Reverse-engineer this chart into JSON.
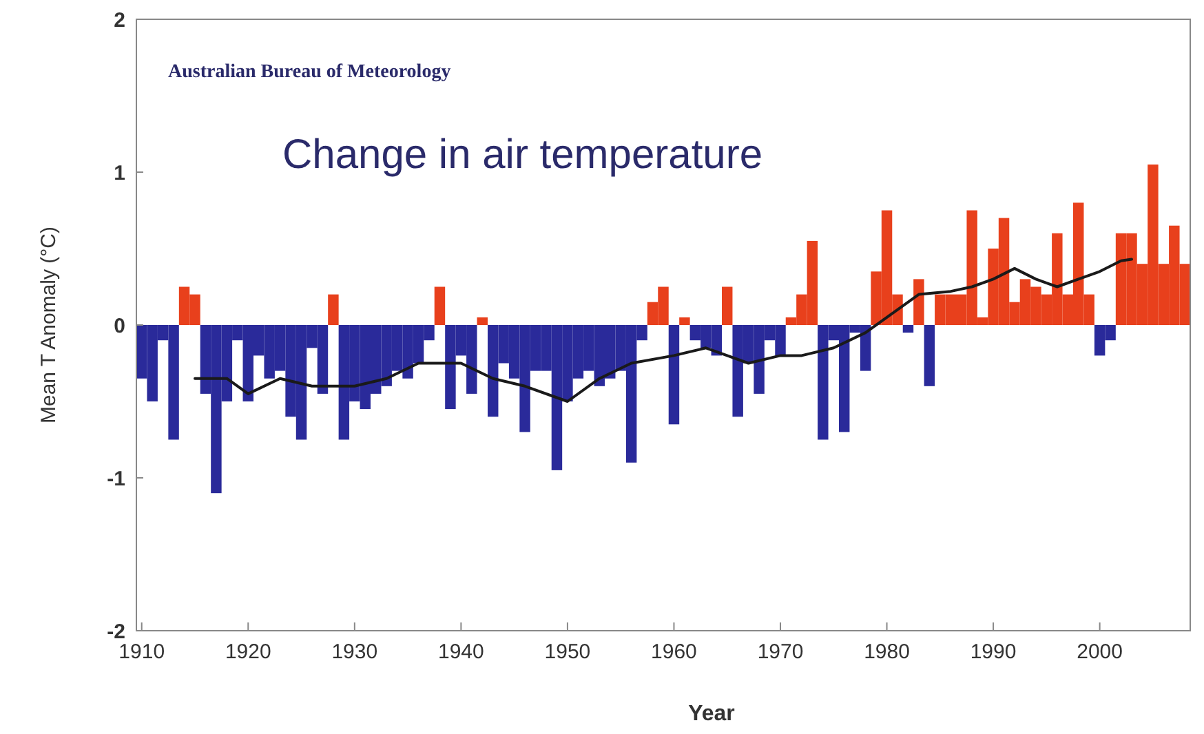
{
  "chart_data": {
    "type": "bar",
    "title": "Change in air temperature",
    "xlabel": "Year",
    "ylabel": "Mean T Anomaly (°C)",
    "annotations": [
      "Australian Bureau of Meteorology"
    ],
    "xlim": [
      1909.5,
      2008.5
    ],
    "xticks": [
      1910,
      1920,
      1930,
      1940,
      1950,
      1960,
      1970,
      1980,
      1990,
      2000
    ],
    "ylim": [
      -2,
      2
    ],
    "yticks": [
      -2,
      -1,
      0,
      1,
      2
    ],
    "grid": false,
    "series": [
      {
        "x": [
          1910,
          1911,
          1912,
          1913,
          1914,
          1915,
          1916,
          1917,
          1918,
          1919,
          1920,
          1921,
          1922,
          1923,
          1924,
          1925,
          1926,
          1927,
          1928,
          1929,
          1930,
          1931,
          1932,
          1933,
          1934,
          1935,
          1936,
          1937,
          1938,
          1939,
          1940,
          1941,
          1942,
          1943,
          1944,
          1945,
          1946,
          1947,
          1948,
          1949,
          1950,
          1951,
          1952,
          1953,
          1954,
          1955,
          1956,
          1957,
          1958,
          1959,
          1960,
          1961,
          1962,
          1963,
          1964,
          1965,
          1966,
          1967,
          1968,
          1969,
          1970,
          1971,
          1972,
          1973,
          1974,
          1975,
          1976,
          1977,
          1978,
          1979,
          1980,
          1981,
          1982,
          1983,
          1984,
          1985,
          1986,
          1987,
          1988,
          1989,
          1990,
          1991,
          1992,
          1993,
          1994,
          1995,
          1996,
          1997,
          1998,
          1999,
          2000,
          2001,
          2002,
          2003,
          2004,
          2005,
          2006,
          2007,
          2008
        ],
        "values": [
          -0.35,
          -0.5,
          -0.1,
          -0.75,
          0.25,
          0.2,
          -0.45,
          -1.1,
          -0.5,
          -0.1,
          -0.5,
          -0.2,
          -0.35,
          -0.3,
          -0.6,
          -0.75,
          -0.15,
          -0.45,
          0.2,
          -0.75,
          -0.5,
          -0.55,
          -0.45,
          -0.4,
          -0.3,
          -0.35,
          -0.25,
          -0.1,
          0.25,
          -0.55,
          -0.2,
          -0.45,
          0.05,
          -0.6,
          -0.25,
          -0.35,
          -0.7,
          -0.3,
          -0.3,
          -0.95,
          -0.5,
          -0.35,
          -0.3,
          -0.4,
          -0.35,
          -0.3,
          -0.9,
          -0.1,
          0.15,
          0.25,
          -0.65,
          0.05,
          -0.1,
          -0.15,
          -0.2,
          0.25,
          -0.6,
          -0.25,
          -0.45,
          -0.1,
          -0.2,
          0.05,
          0.2,
          0.55,
          -0.75,
          -0.1,
          -0.7,
          -0.05,
          -0.3,
          0.35,
          0.75,
          0.2,
          -0.05,
          0.3,
          -0.4,
          0.2,
          0.2,
          0.2,
          0.75,
          0.05,
          0.5,
          0.7,
          0.15,
          0.3,
          0.25,
          0.2,
          0.6,
          0.2,
          0.8,
          0.2,
          -0.2,
          -0.1,
          0.6,
          0.6,
          0.4,
          1.05,
          0.4,
          0.65,
          0.4
        ],
        "colors": [
          "#2a2a9a",
          "#2a2a9a",
          "#2a2a9a",
          "#2a2a9a",
          "#e8401c",
          "#e8401c",
          "#2a2a9a",
          "#2a2a9a",
          "#2a2a9a",
          "#2a2a9a",
          "#2a2a9a",
          "#2a2a9a",
          "#2a2a9a",
          "#2a2a9a",
          "#2a2a9a",
          "#2a2a9a",
          "#2a2a9a",
          "#2a2a9a",
          "#e8401c",
          "#2a2a9a",
          "#2a2a9a",
          "#2a2a9a",
          "#2a2a9a",
          "#2a2a9a",
          "#2a2a9a",
          "#2a2a9a",
          "#2a2a9a",
          "#2a2a9a",
          "#e8401c",
          "#2a2a9a",
          "#2a2a9a",
          "#2a2a9a",
          "#e8401c",
          "#2a2a9a",
          "#2a2a9a",
          "#2a2a9a",
          "#2a2a9a",
          "#2a2a9a",
          "#2a2a9a",
          "#2a2a9a",
          "#2a2a9a",
          "#2a2a9a",
          "#2a2a9a",
          "#2a2a9a",
          "#2a2a9a",
          "#2a2a9a",
          "#2a2a9a",
          "#2a2a9a",
          "#e8401c",
          "#e8401c",
          "#2a2a9a",
          "#e8401c",
          "#2a2a9a",
          "#2a2a9a",
          "#2a2a9a",
          "#e8401c",
          "#2a2a9a",
          "#2a2a9a",
          "#2a2a9a",
          "#2a2a9a",
          "#2a2a9a",
          "#e8401c",
          "#e8401c",
          "#e8401c",
          "#2a2a9a",
          "#2a2a9a",
          "#2a2a9a",
          "#2a2a9a",
          "#2a2a9a",
          "#e8401c",
          "#e8401c",
          "#e8401c",
          "#2a2a9a",
          "#e8401c",
          "#2a2a9a",
          "#e8401c",
          "#e8401c",
          "#e8401c",
          "#e8401c",
          "#e8401c",
          "#e8401c",
          "#e8401c",
          "#e8401c",
          "#e8401c",
          "#e8401c",
          "#e8401c",
          "#e8401c",
          "#e8401c",
          "#e8401c",
          "#e8401c",
          "#2a2a9a",
          "#2a2a9a",
          "#e8401c",
          "#e8401c",
          "#e8401c",
          "#e8401c",
          "#e8401c",
          "#e8401c",
          "#e8401c"
        ]
      },
      {
        "type": "line",
        "color": "#1a1a1a",
        "x": [
          1915,
          1918,
          1920,
          1923,
          1926,
          1930,
          1933,
          1936,
          1938,
          1940,
          1943,
          1946,
          1950,
          1953,
          1956,
          1960,
          1963,
          1965,
          1967,
          1970,
          1972,
          1975,
          1978,
          1980,
          1983,
          1986,
          1988,
          1990,
          1992,
          1994,
          1996,
          1998,
          2000,
          2002,
          2003
        ],
        "values": [
          -0.35,
          -0.35,
          -0.45,
          -0.35,
          -0.4,
          -0.4,
          -0.35,
          -0.25,
          -0.25,
          -0.25,
          -0.35,
          -0.4,
          -0.5,
          -0.35,
          -0.25,
          -0.2,
          -0.15,
          -0.2,
          -0.25,
          -0.2,
          -0.2,
          -0.15,
          -0.05,
          0.05,
          0.2,
          0.22,
          0.25,
          0.3,
          0.37,
          0.3,
          0.25,
          0.3,
          0.35,
          0.42,
          0.43
        ]
      }
    ]
  }
}
